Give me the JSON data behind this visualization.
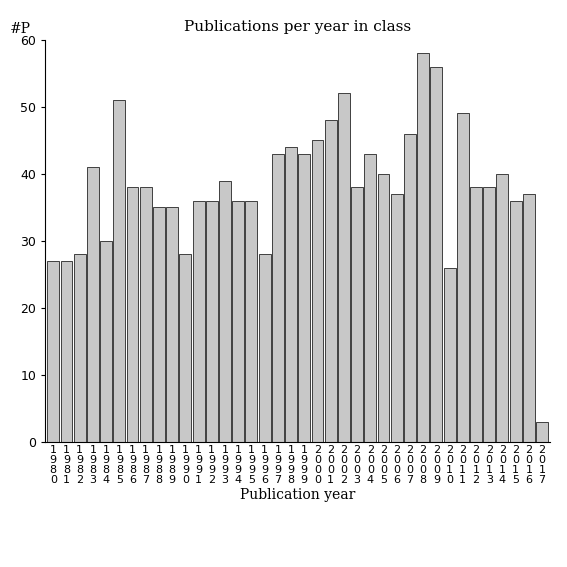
{
  "title": "Publications per year in class",
  "xlabel": "Publication year",
  "ylabel": "#P",
  "years": [
    1980,
    1981,
    1982,
    1983,
    1984,
    1985,
    1986,
    1987,
    1988,
    1989,
    1990,
    1991,
    1992,
    1993,
    1994,
    1995,
    1996,
    1997,
    1998,
    1999,
    2000,
    2001,
    2002,
    2003,
    2004,
    2005,
    2006,
    2007,
    2008,
    2009,
    2010,
    2011,
    2012,
    2013,
    2014,
    2015,
    2016,
    2017
  ],
  "values": [
    27,
    27,
    28,
    41,
    30,
    51,
    38,
    38,
    35,
    35,
    28,
    36,
    36,
    39,
    36,
    36,
    28,
    43,
    44,
    43,
    45,
    48,
    52,
    38,
    43,
    40,
    37,
    46,
    58,
    56,
    26,
    49,
    38,
    38,
    40,
    36,
    37,
    3
  ],
  "bar_color": "#c8c8c8",
  "bar_edge_color": "#000000",
  "ylim": [
    0,
    60
  ],
  "yticks": [
    0,
    10,
    20,
    30,
    40,
    50,
    60
  ],
  "background_color": "#ffffff",
  "title_fontsize": 11,
  "label_fontsize": 10,
  "tick_fontsize": 9
}
